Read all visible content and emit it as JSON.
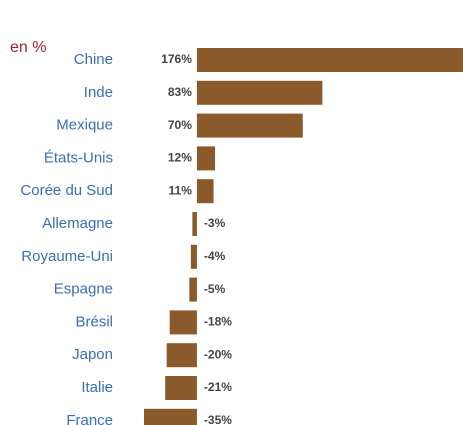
{
  "chart_data": {
    "type": "barh",
    "subtitle": "en %",
    "categories": [
      "Chine",
      "Inde",
      "Mexique",
      "États-Unis",
      "Corée du Sud",
      "Allemagne",
      "Royaume-Uni",
      "Espagne",
      "Brésil",
      "Japon",
      "Italie",
      "France"
    ],
    "values": [
      176,
      83,
      70,
      12,
      11,
      -3,
      -4,
      -5,
      -18,
      -20,
      -21,
      -35
    ],
    "value_labels": [
      "176%",
      "83%",
      "70%",
      "12%",
      "11%",
      "-3%",
      "-4%",
      "-5%",
      "-18%",
      "-20%",
      "-21%",
      "-35%"
    ],
    "color": "#8b5a2b",
    "xlim": [
      -35,
      176
    ]
  }
}
